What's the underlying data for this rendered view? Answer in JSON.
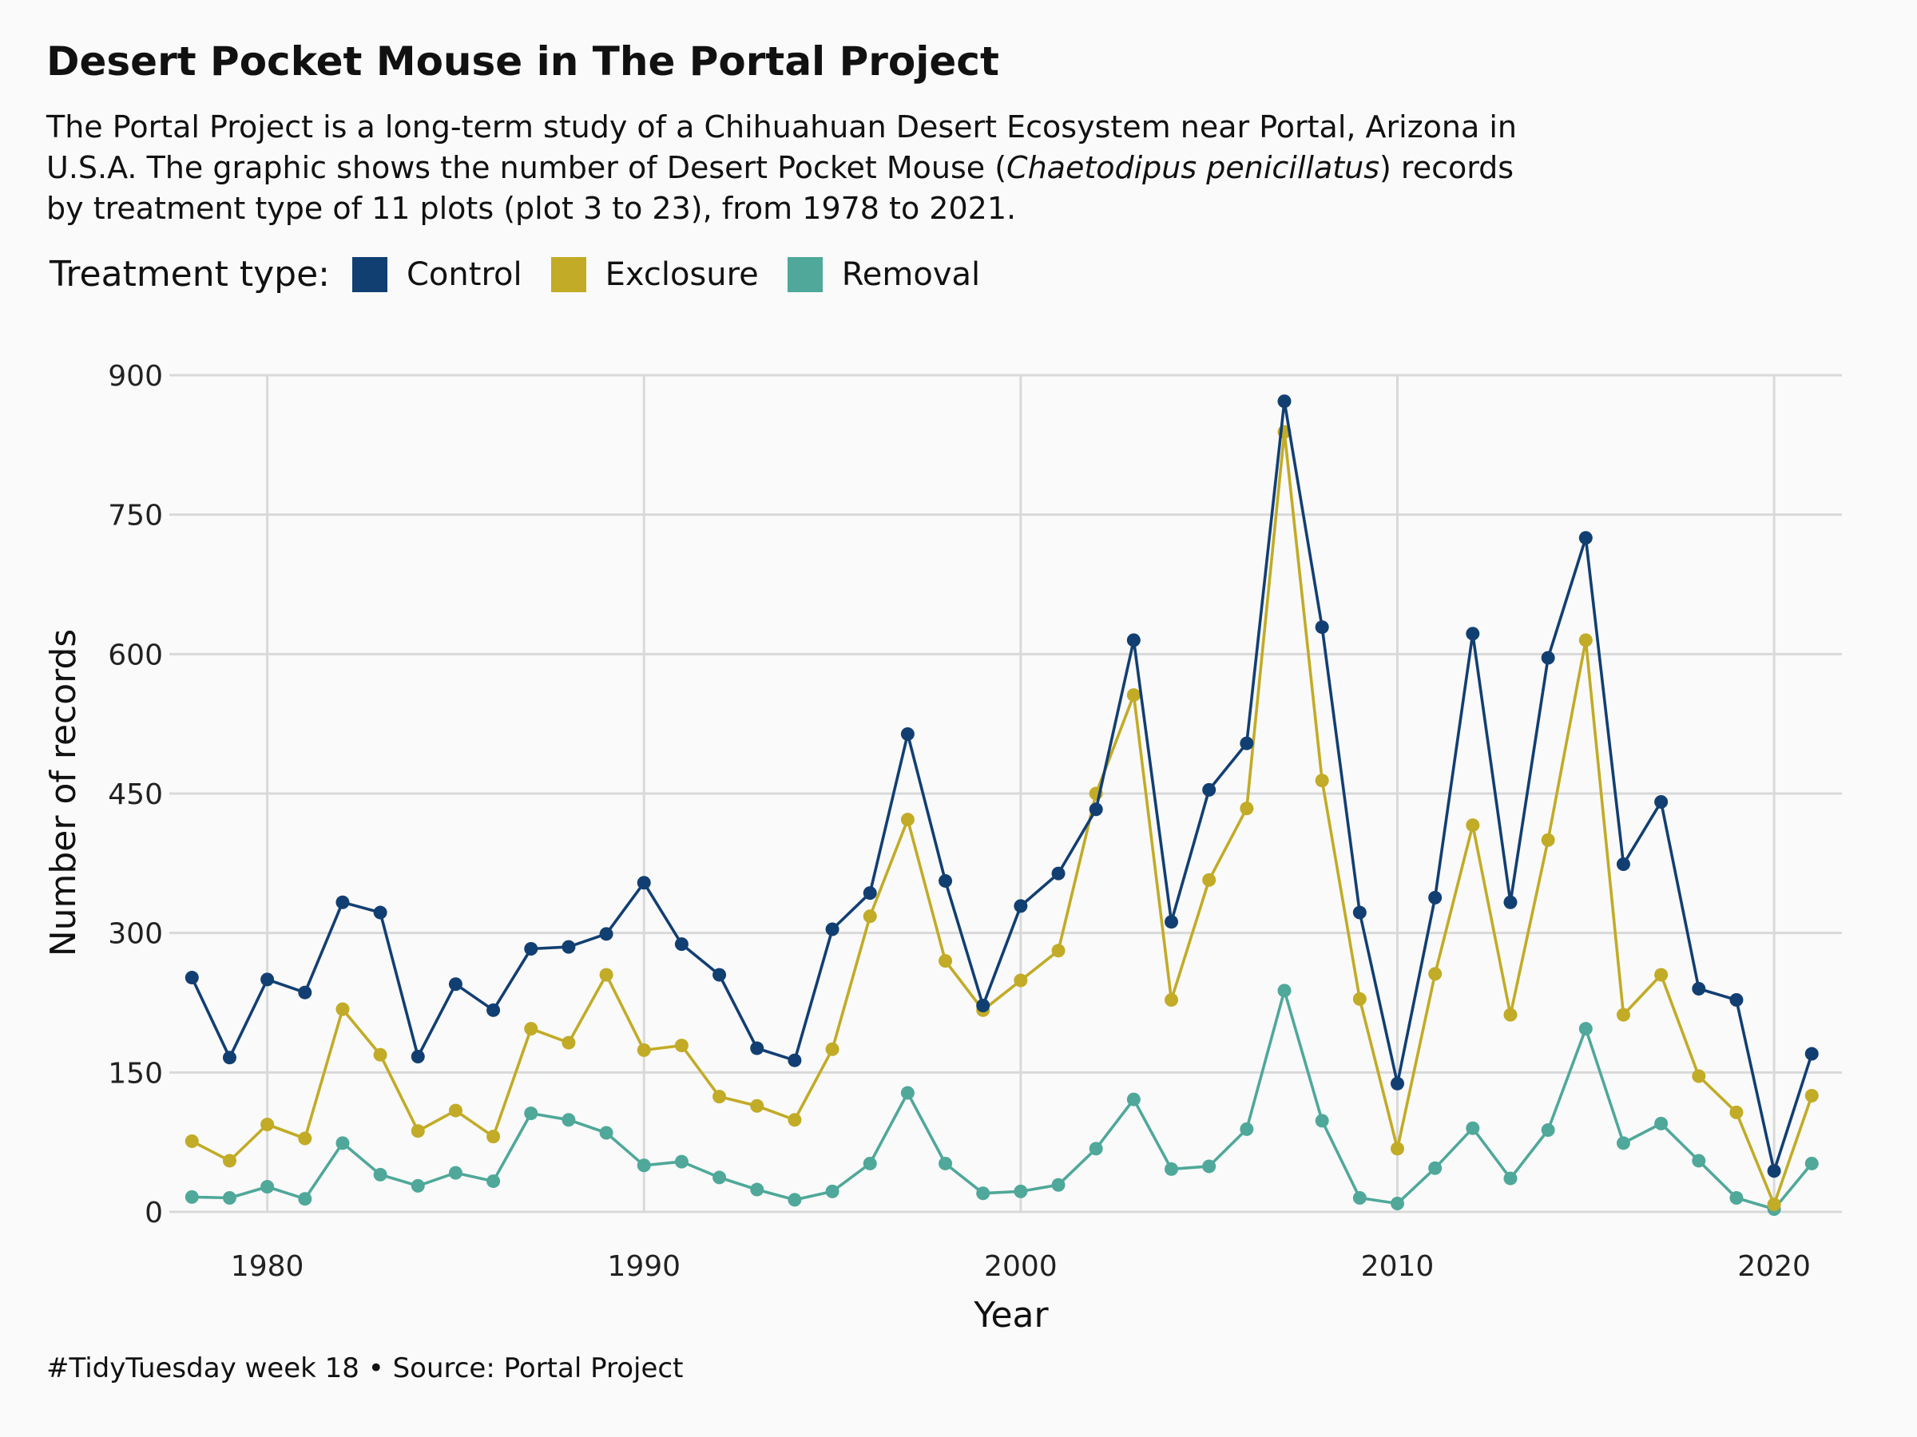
{
  "title": "Desert Pocket Mouse in The Portal Project",
  "subtitle": {
    "line1": "The Portal Project is a long-term study of a Chihuahuan Desert Ecosystem near Portal, Arizona in",
    "line2_before": "U.S.A. The graphic shows the number of Desert Pocket Mouse (",
    "line2_species": "Chaetodipus penicillatus",
    "line2_after": ") records",
    "line3": "by treatment type of 11 plots (plot 3 to 23), from 1978 to 2021."
  },
  "legend": {
    "title": "Treatment type:",
    "items": [
      {
        "label": "Control",
        "color": "#123f72"
      },
      {
        "label": "Exclosure",
        "color": "#c2ab26"
      },
      {
        "label": "Removal",
        "color": "#4fa89a"
      }
    ]
  },
  "caption": "#TidyTuesday week 18  •  Source: Portal Project",
  "chart_data": {
    "type": "line",
    "xlabel": "Year",
    "ylabel": "Number of records",
    "xlim": [
      1977.4,
      2021.8
    ],
    "ylim": [
      0,
      900
    ],
    "xticks": [
      1980,
      1990,
      2000,
      2010,
      2020
    ],
    "yticks": [
      0,
      150,
      300,
      450,
      600,
      750,
      900
    ],
    "grid": true,
    "legend_position": "top",
    "x": [
      1978,
      1979,
      1980,
      1981,
      1982,
      1983,
      1984,
      1985,
      1986,
      1987,
      1988,
      1989,
      1990,
      1991,
      1992,
      1993,
      1994,
      1995,
      1996,
      1997,
      1998,
      1999,
      2000,
      2001,
      2002,
      2003,
      2004,
      2005,
      2006,
      2007,
      2008,
      2009,
      2010,
      2011,
      2012,
      2013,
      2014,
      2015,
      2016,
      2017,
      2018,
      2019,
      2020,
      2021
    ],
    "series": [
      {
        "name": "Control",
        "color": "#123f72",
        "values": [
          252,
          166,
          250,
          236,
          333,
          322,
          167,
          245,
          217,
          283,
          285,
          299,
          354,
          288,
          255,
          176,
          163,
          304,
          343,
          514,
          356,
          222,
          329,
          364,
          433,
          615,
          312,
          454,
          504,
          872,
          629,
          322,
          138,
          338,
          622,
          333,
          596,
          725,
          374,
          441,
          240,
          228,
          44,
          170
        ]
      },
      {
        "name": "Exclosure",
        "color": "#c2ab26",
        "values": [
          76,
          55,
          94,
          79,
          218,
          169,
          87,
          109,
          81,
          197,
          182,
          255,
          174,
          179,
          124,
          114,
          99,
          175,
          318,
          422,
          270,
          217,
          249,
          281,
          450,
          556,
          228,
          357,
          434,
          839,
          464,
          229,
          68,
          256,
          416,
          212,
          400,
          615,
          212,
          255,
          146,
          107,
          8,
          125
        ]
      },
      {
        "name": "Removal",
        "color": "#4fa89a",
        "values": [
          16,
          15,
          27,
          14,
          74,
          40,
          28,
          42,
          33,
          106,
          99,
          85,
          50,
          54,
          37,
          24,
          13,
          22,
          52,
          128,
          52,
          20,
          22,
          29,
          68,
          121,
          46,
          49,
          89,
          238,
          98,
          15,
          9,
          47,
          90,
          36,
          88,
          197,
          74,
          95,
          55,
          15,
          3,
          52
        ]
      }
    ]
  }
}
